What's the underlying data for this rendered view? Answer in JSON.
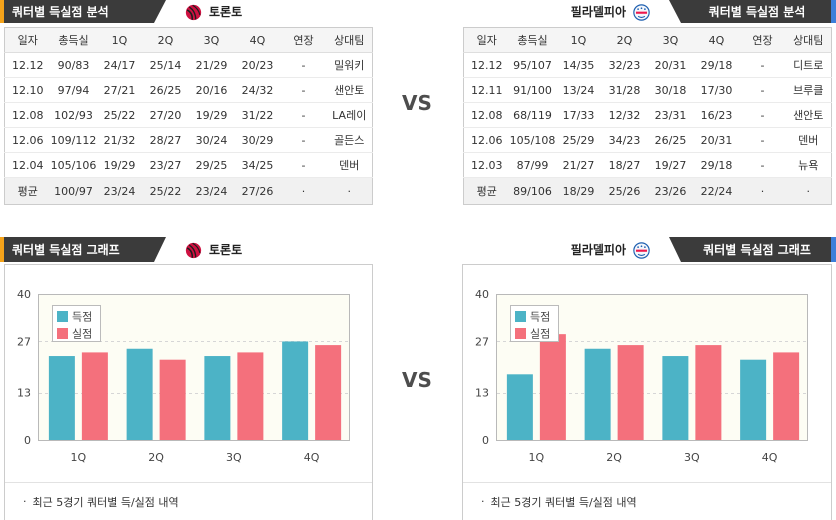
{
  "vs_label": "VS",
  "caption_bullet": "·",
  "colors": {
    "tab_background": "#3b3b3b"
  },
  "teams": [
    {
      "name": "토론토",
      "logo_icon": "raptors-logo",
      "accent_color": "#f5a31a",
      "analysis_title": "쿼터별 득실점 분석",
      "graph_title": "쿼터별 득실점 그래프",
      "caption": "최근 5경기 쿼터별 득/실점 내역",
      "table": {
        "headers": [
          "일자",
          "총득실",
          "1Q",
          "2Q",
          "3Q",
          "4Q",
          "연장",
          "상대팀"
        ],
        "rows": [
          [
            "12.12",
            "90/83",
            "24/17",
            "25/14",
            "21/29",
            "20/23",
            "-",
            "밀워키"
          ],
          [
            "12.10",
            "97/94",
            "27/21",
            "26/25",
            "20/16",
            "24/32",
            "-",
            "샌안토"
          ],
          [
            "12.08",
            "102/93",
            "25/22",
            "27/20",
            "19/29",
            "31/22",
            "-",
            "LA레이"
          ],
          [
            "12.06",
            "109/112",
            "21/32",
            "28/27",
            "30/24",
            "30/29",
            "-",
            "골든스"
          ],
          [
            "12.04",
            "105/106",
            "19/29",
            "23/27",
            "29/25",
            "34/25",
            "-",
            "덴버"
          ]
        ],
        "average": [
          "평균",
          "100/97",
          "23/24",
          "25/22",
          "23/24",
          "27/26",
          "·",
          "·"
        ]
      }
    },
    {
      "name": "필라델피아",
      "logo_icon": "sixers-logo",
      "accent_color": "#3d7fd9",
      "analysis_title": "쿼터별 득실점 분석",
      "graph_title": "쿼터별 득실점 그래프",
      "caption": "최근 5경기 쿼터별 득/실점 내역",
      "table": {
        "headers": [
          "일자",
          "총득실",
          "1Q",
          "2Q",
          "3Q",
          "4Q",
          "연장",
          "상대팀"
        ],
        "rows": [
          [
            "12.12",
            "95/107",
            "14/35",
            "32/23",
            "20/31",
            "29/18",
            "-",
            "디트로"
          ],
          [
            "12.11",
            "91/100",
            "13/24",
            "31/28",
            "30/18",
            "17/30",
            "-",
            "브루클"
          ],
          [
            "12.08",
            "68/119",
            "17/33",
            "12/32",
            "23/31",
            "16/23",
            "-",
            "샌안토"
          ],
          [
            "12.06",
            "105/108",
            "25/29",
            "34/23",
            "26/25",
            "20/31",
            "-",
            "덴버"
          ],
          [
            "12.03",
            "87/99",
            "21/27",
            "18/27",
            "19/27",
            "29/18",
            "-",
            "뉴욕"
          ]
        ],
        "average": [
          "평균",
          "89/106",
          "18/29",
          "25/26",
          "23/26",
          "22/24",
          "·",
          "·"
        ]
      }
    }
  ],
  "chart_data": [
    {
      "type": "bar",
      "categories": [
        "1Q",
        "2Q",
        "3Q",
        "4Q"
      ],
      "series": [
        {
          "name": "득점",
          "values": [
            23,
            25,
            23,
            27
          ],
          "color": "#4cb3c6"
        },
        {
          "name": "실점",
          "values": [
            24,
            22,
            24,
            26
          ],
          "color": "#f4707c"
        }
      ],
      "ylim": [
        0,
        40
      ],
      "yticks": [
        0,
        13,
        27,
        40
      ],
      "grid": true,
      "legend": "top-left"
    },
    {
      "type": "bar",
      "categories": [
        "1Q",
        "2Q",
        "3Q",
        "4Q"
      ],
      "series": [
        {
          "name": "득점",
          "values": [
            18,
            25,
            23,
            22
          ],
          "color": "#4cb3c6"
        },
        {
          "name": "실점",
          "values": [
            29,
            26,
            26,
            24
          ],
          "color": "#f4707c"
        }
      ],
      "ylim": [
        0,
        40
      ],
      "yticks": [
        0,
        13,
        27,
        40
      ],
      "grid": true,
      "legend": "top-left"
    }
  ]
}
